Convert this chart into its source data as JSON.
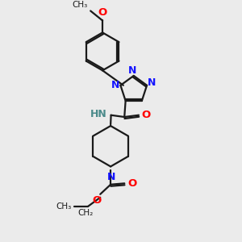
{
  "background_color": "#ebebeb",
  "bond_color": "#1a1a1a",
  "nitrogen_color": "#1414ff",
  "oxygen_color": "#ff0000",
  "carbon_color": "#1a1a1a",
  "nh_color": "#4a8a8a",
  "figsize": [
    3.0,
    3.0
  ],
  "dpi": 100,
  "xlim": [
    0,
    10
  ],
  "ylim": [
    0,
    10
  ]
}
